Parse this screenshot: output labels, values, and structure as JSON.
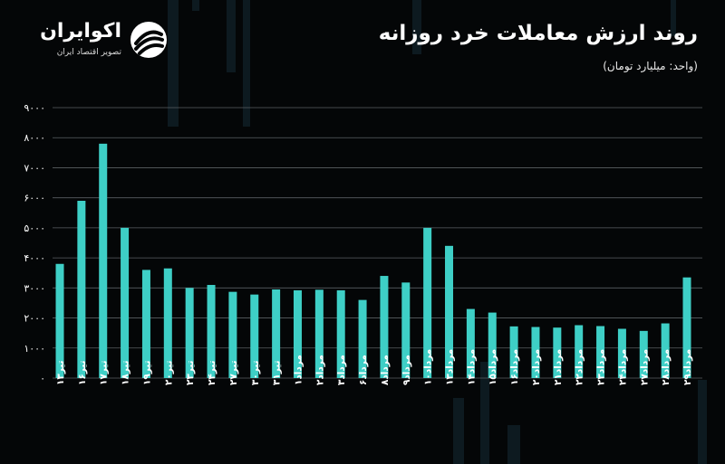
{
  "header": {
    "title": "روند ارزش معاملات خرد روزانه",
    "subtitle": "(واحد: میلیارد تومان)"
  },
  "brand": {
    "name": "اکوایران",
    "tagline": "تصویر اقتصاد ایران",
    "logo_icon": "ecoiran-logo-icon"
  },
  "colors": {
    "background": "#040607",
    "bar": "#3ecfc6",
    "grid": "#5a5f63",
    "axis_text": "#ffffff",
    "deco": "#0d1a20"
  },
  "chart_data": {
    "type": "bar",
    "title": "روند ارزش معاملات خرد روزانه",
    "ylabel": "(واحد: میلیارد تومان)",
    "ylim": [
      0,
      9000
    ],
    "yticks": [
      0,
      1000,
      2000,
      3000,
      4000,
      5000,
      6000,
      7000,
      8000,
      9000
    ],
    "ytick_labels": [
      "۰",
      "۱۰۰۰",
      "۲۰۰۰",
      "۳۰۰۰",
      "۴۰۰۰",
      "۵۰۰۰",
      "۶۰۰۰",
      "۷۰۰۰",
      "۸۰۰۰",
      "۹۰۰۰"
    ],
    "grid": true,
    "categories": [
      "تیر۱۳",
      "تیر۱۶",
      "تیر۱۷",
      "تیر۱۸",
      "تیر۱۹",
      "تیر۲۰",
      "تیر۲۳",
      "تیر۲۴",
      "تیر۲۷",
      "تیر۳۰",
      "تیر۳۱",
      "مرداد۱",
      "مرداد۲",
      "مرداد۳",
      "مرداد۶",
      "مرداد۸",
      "مرداد۹",
      "مرداد۱۰",
      "مرداد۱۳",
      "مرداد۱۴",
      "مرداد۱۵",
      "مرداد۱۶",
      "مرداد۲۰",
      "مرداد۲۱",
      "مرداد۲۲",
      "مرداد۲۳",
      "مرداد۲۴",
      "مرداد۲۷",
      "مرداد۲۸",
      "مرداد۲۹"
    ],
    "values": [
      3800,
      5900,
      7800,
      5000,
      3600,
      3650,
      3000,
      3100,
      2870,
      2780,
      2950,
      2920,
      2940,
      2920,
      2600,
      3400,
      3180,
      5000,
      4400,
      2300,
      2180,
      1720,
      1700,
      1680,
      1760,
      1730,
      1640,
      1570,
      1820,
      3350
    ]
  }
}
